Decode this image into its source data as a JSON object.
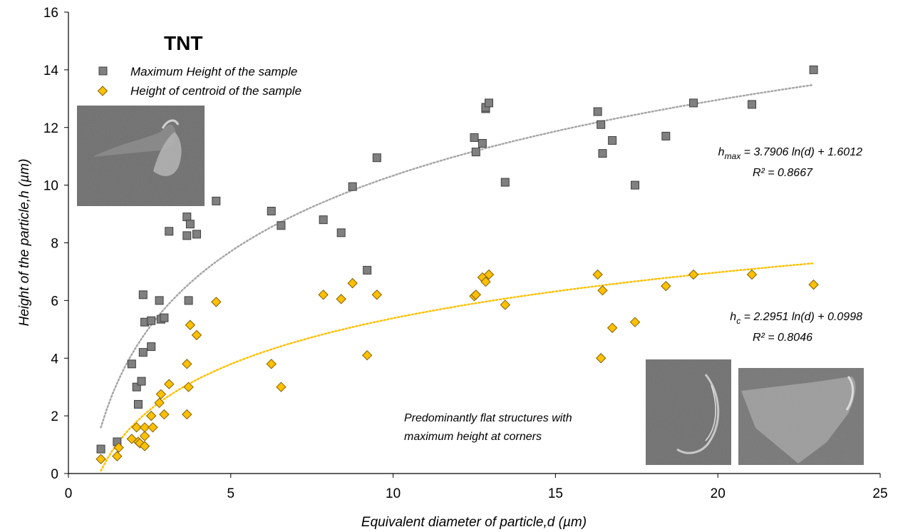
{
  "chart_data": {
    "type": "scatter",
    "title": "TNT",
    "xlabel": "Equivalent diameter of particle,d (µm)",
    "ylabel": "Height of the particle,h (µm)",
    "xlim": [
      0,
      25
    ],
    "ylim": [
      0,
      16
    ],
    "xticks": [
      "0",
      "5",
      "10",
      "15",
      "20",
      "25"
    ],
    "yticks": [
      "0",
      "2",
      "4",
      "6",
      "8",
      "10",
      "12",
      "14",
      "16"
    ],
    "grid": false,
    "legend_position": "top-left",
    "series": [
      {
        "name": "Maximum Height of the sample",
        "marker": "square",
        "color": "#808080",
        "x": [
          1.0,
          1.5,
          1.95,
          2.1,
          2.15,
          2.25,
          2.3,
          2.3,
          2.35,
          2.55,
          2.55,
          2.8,
          2.85,
          2.95,
          3.1,
          3.65,
          3.65,
          3.7,
          3.75,
          3.95,
          4.55,
          6.25,
          6.55,
          7.85,
          8.4,
          8.75,
          9.2,
          9.5,
          12.5,
          12.55,
          12.75,
          12.85,
          12.85,
          12.95,
          13.45,
          16.3,
          16.4,
          16.45,
          16.75,
          17.45,
          18.4,
          19.25,
          21.05,
          22.95
        ],
        "y": [
          0.85,
          1.1,
          3.8,
          3.0,
          2.4,
          3.2,
          4.2,
          6.2,
          5.25,
          5.3,
          4.4,
          6.0,
          5.35,
          5.4,
          8.4,
          8.9,
          8.25,
          6.0,
          8.65,
          8.3,
          9.45,
          9.1,
          8.6,
          8.8,
          8.35,
          9.95,
          7.05,
          10.95,
          11.65,
          11.15,
          11.45,
          12.65,
          12.7,
          12.85,
          10.1,
          12.55,
          12.1,
          11.1,
          11.55,
          10.0,
          11.7,
          12.85,
          12.8,
          14.0
        ]
      },
      {
        "name": "Height of centroid of the sample",
        "marker": "diamond",
        "color": "#FFC000",
        "x": [
          1.0,
          1.5,
          1.55,
          1.95,
          2.1,
          2.15,
          2.2,
          2.35,
          2.35,
          2.35,
          2.55,
          2.6,
          2.8,
          2.85,
          2.95,
          3.1,
          3.65,
          3.65,
          3.7,
          3.75,
          3.95,
          4.55,
          6.25,
          6.55,
          7.85,
          8.4,
          8.75,
          9.2,
          9.5,
          12.5,
          12.55,
          12.75,
          12.85,
          12.95,
          13.45,
          16.3,
          16.4,
          16.45,
          16.75,
          17.45,
          18.4,
          19.25,
          21.05,
          22.95
        ],
        "y": [
          0.5,
          0.6,
          0.9,
          1.2,
          1.6,
          1.1,
          1.05,
          0.95,
          1.3,
          1.6,
          2.0,
          1.6,
          2.45,
          2.75,
          2.05,
          3.1,
          3.8,
          2.05,
          3.0,
          5.15,
          4.8,
          5.95,
          3.8,
          3.0,
          6.2,
          6.05,
          6.6,
          4.1,
          6.2,
          6.15,
          6.2,
          6.8,
          6.65,
          6.9,
          5.85,
          6.9,
          4.0,
          6.35,
          5.05,
          5.25,
          6.5,
          6.9,
          6.9,
          6.55
        ]
      }
    ],
    "trendlines": [
      {
        "series": "Maximum Height of the sample",
        "type": "log",
        "a": 3.7906,
        "b": 1.6012,
        "x_range": [
          1.0,
          22.95
        ],
        "color": "#A6A6A6",
        "equation_sub": "max",
        "equation_rest": " = 3.7906 ln(d) + 1.6012",
        "r2_label": "R² = 0.8667"
      },
      {
        "series": "Height of centroid of the sample",
        "type": "log",
        "a": 2.2951,
        "b": 0.0998,
        "x_range": [
          1.0,
          22.95
        ],
        "color": "#FFC000",
        "equation_sub": "c",
        "equation_rest": " = 2.2951 ln(d) + 0.0998",
        "r2_label": "R² = 0.8046"
      }
    ],
    "annotations": {
      "note_line1": "Predominantly  flat structures with",
      "note_line2": "maximum  height at corners"
    }
  }
}
